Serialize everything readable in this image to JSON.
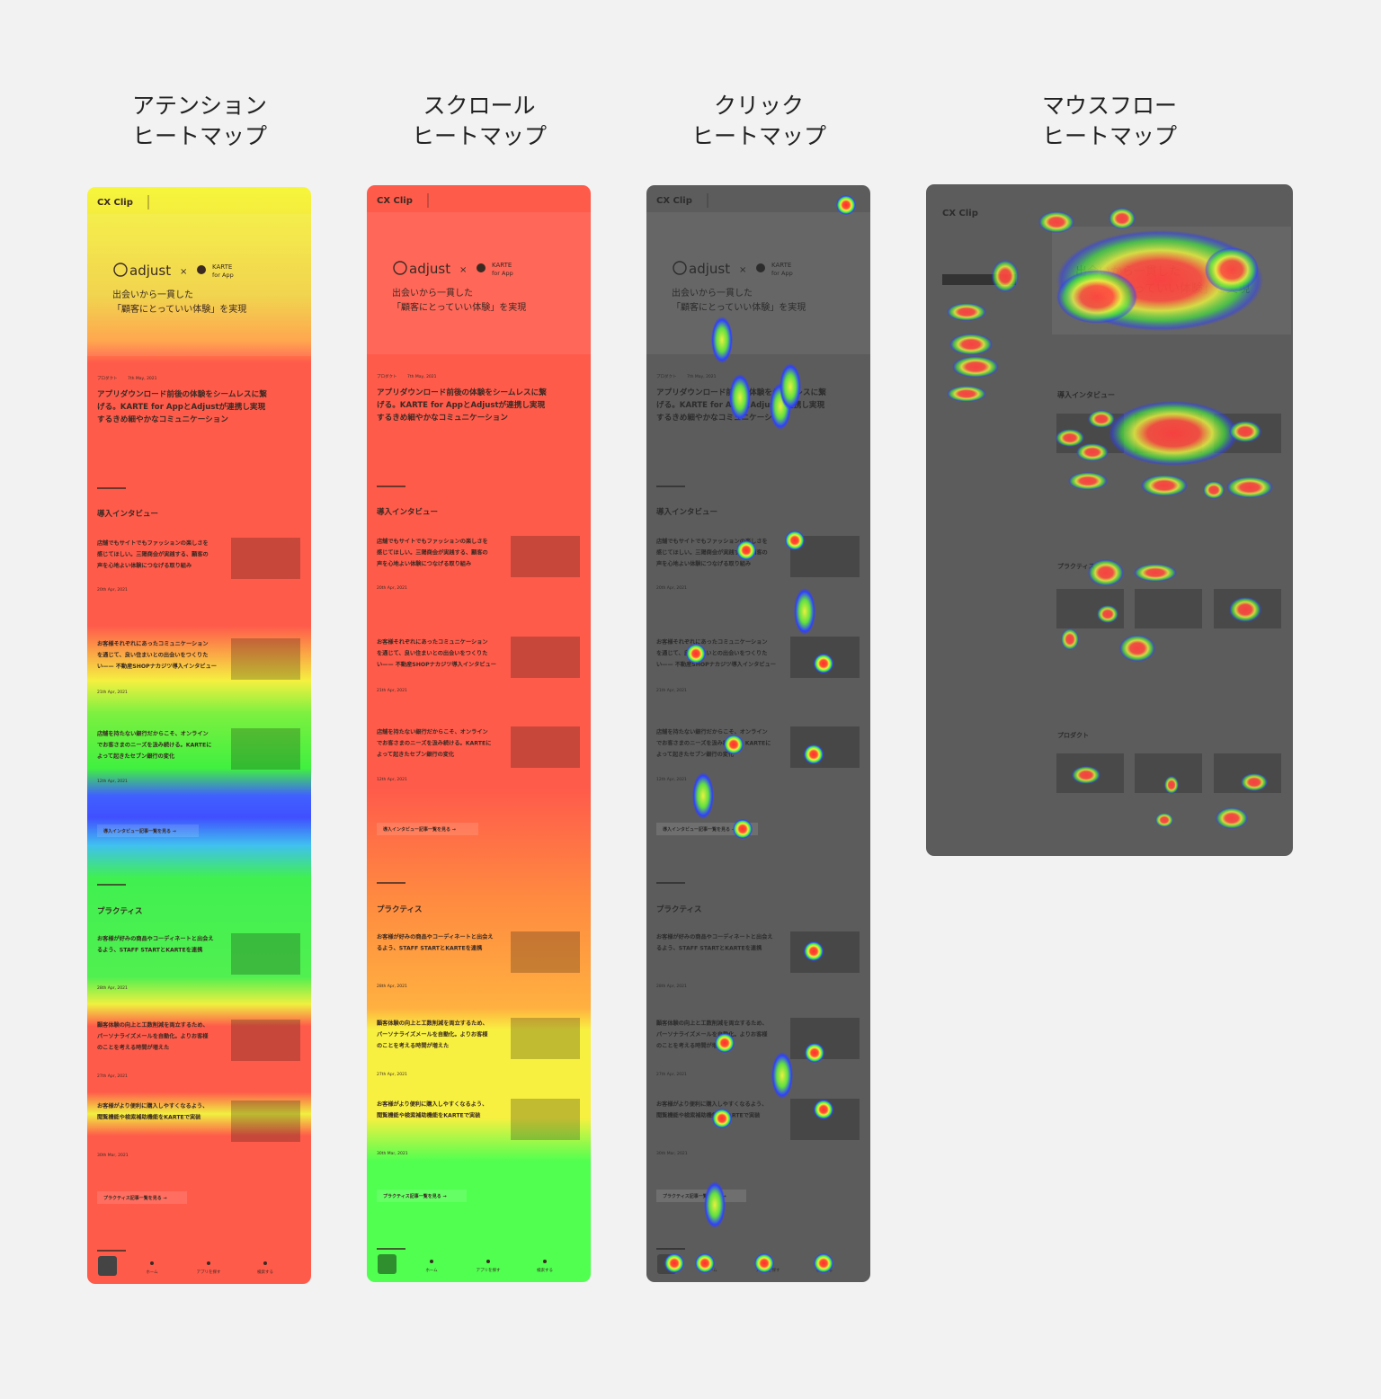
{
  "panels": [
    {
      "title": [
        "アテンション",
        "ヒートマップ"
      ]
    },
    {
      "title": [
        "スクロール",
        "ヒートマップ"
      ]
    },
    {
      "title": [
        "クリック",
        "ヒートマップ"
      ]
    },
    {
      "title": [
        "マウスフロー",
        "ヒートマップ"
      ]
    }
  ],
  "mock": {
    "brand": "CX Clip",
    "logo1": "adjust",
    "cross": "×",
    "logo2": "KARTE",
    "logo3": "for App",
    "hero": [
      "出会いから一貫した",
      "「顧客にとっていい体験」を実現"
    ],
    "category": "プロダクト",
    "date": "7th May, 2021",
    "headline": [
      "アプリダウンロード前後の体験をシームレスに繋",
      "げる。KARTE for AppとAdjustが連携し実現",
      "するきめ細やかなコミュニケーション"
    ],
    "section1": "導入インタビュー",
    "interviews": [
      {
        "lines": [
          "店舗でもサイトでもファッションの楽しさを",
          "感じてほしい。三陽商会が実践する、顧客の",
          "声を心地よい体験につなげる取り組み"
        ],
        "date": "20th Apr, 2021"
      },
      {
        "lines": [
          "お客様それぞれにあったコミュニケーション",
          "を通じて、良い住まいとの出会いをつくりた",
          "い—— 不動産SHOPナカジツ導入インタビュー"
        ],
        "date": "21th Apr, 2021"
      },
      {
        "lines": [
          "店舗を持たない銀行だからこそ、オンライン",
          "でお客さまのニーズを汲み続ける。KARTEに",
          "よって起きたセブン銀行の変化"
        ],
        "date": "12th Apr, 2021"
      }
    ],
    "more1": "導入インタビュー記事一覧を見る →",
    "section2": "プラクティス",
    "practices": [
      {
        "lines": [
          "お客様が好みの商品やコーディネートと出会え",
          "るよう、STAFF STARTとKARTEを連携"
        ],
        "date": "28th Apr, 2021"
      },
      {
        "lines": [
          "顧客体験の向上と工数削減を両立するため、",
          "パーソナライズメールを自動化。よりお客様",
          "のことを考える時間が増えた"
        ],
        "date": "27th Apr, 2021"
      },
      {
        "lines": [
          "お客様がより便利に購入しやすくなるよう、",
          "閲覧機能や検索補助機能をKARTEで実装"
        ],
        "date": "30th Mar, 2021"
      }
    ],
    "more2": "プラクティス記事一覧を見る →",
    "section3": "プロダクト",
    "nav": [
      "ホーム",
      "アプリを探す",
      "検索する"
    ]
  }
}
